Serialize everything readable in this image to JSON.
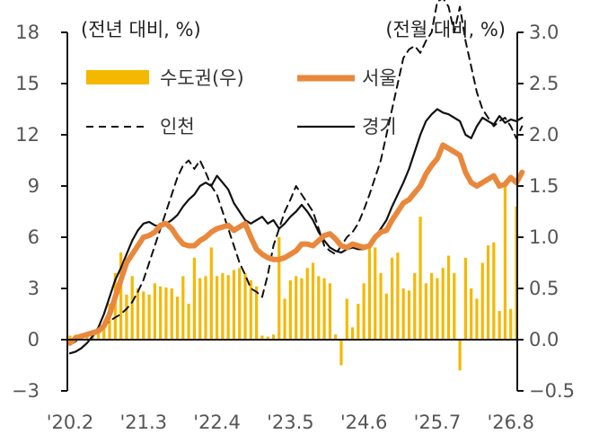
{
  "chart_data": {
    "type": "bar+line",
    "left_unit_label": "(전년 대비, %)",
    "right_unit_label": "(전월 대비, %)",
    "left_ticks": [
      "18",
      "15",
      "12",
      "9",
      "6",
      "3",
      "0",
      "−3"
    ],
    "right_ticks": [
      "3.0",
      "2.5",
      "2.0",
      "1.5",
      "1.0",
      "0.5",
      "0.0",
      "−0.5"
    ],
    "ylim_left": [
      -3,
      18
    ],
    "ylim_right": [
      -0.5,
      3.0
    ],
    "x_tick_labels": [
      "'20.2",
      "'21.3",
      "'22.4",
      "'23.5",
      "'24.6",
      "'25.7",
      "'26.8"
    ],
    "x_tick_index": [
      0,
      13,
      26,
      39,
      52,
      65,
      78
    ],
    "colors": {
      "bar": "#f5b800",
      "seoul": "#e9883c",
      "incheon": "#111111",
      "gyeonggi": "#111111"
    },
    "legend": [
      {
        "key": "bar",
        "label": "수도권(우)"
      },
      {
        "key": "seoul",
        "label": "서울"
      },
      {
        "key": "incheon",
        "label": "인천"
      },
      {
        "key": "gyeonggi",
        "label": "경기"
      }
    ],
    "series": [
      {
        "name": "수도권(우)",
        "axis": "right",
        "kind": "bar",
        "values": [
          0.04,
          0.05,
          0.06,
          0.07,
          0.05,
          0.06,
          0.12,
          0.35,
          0.65,
          0.85,
          0.44,
          0.62,
          0.5,
          0.47,
          0.44,
          0.55,
          0.52,
          0.51,
          0.5,
          0.42,
          0.62,
          0.35,
          0.8,
          0.6,
          0.62,
          0.9,
          0.62,
          0.65,
          0.63,
          0.68,
          0.7,
          0.65,
          0.58,
          0.52,
          0.04,
          0.03,
          0.05,
          1.0,
          0.4,
          0.58,
          0.62,
          0.6,
          0.7,
          0.75,
          0.62,
          0.6,
          0.55,
          0.05,
          -0.25,
          0.4,
          0.12,
          0.35,
          0.55,
          0.95,
          0.9,
          0.65,
          0.45,
          0.8,
          0.85,
          0.5,
          0.48,
          0.65,
          1.2,
          0.55,
          0.65,
          0.6,
          0.7,
          0.82,
          0.65,
          -0.3,
          0.8,
          0.5,
          0.4,
          0.75,
          0.92,
          0.95,
          0.28,
          1.55,
          0.3,
          1.3
        ]
      },
      {
        "name": "서울",
        "axis": "left",
        "kind": "line",
        "values": [
          -0.2,
          0.1,
          0.2,
          0.3,
          0.4,
          0.5,
          0.8,
          1.5,
          2.5,
          3.5,
          4.5,
          5.0,
          5.5,
          6.0,
          6.1,
          6.3,
          6.7,
          6.8,
          6.5,
          6.0,
          5.6,
          5.5,
          5.5,
          5.8,
          6.0,
          6.3,
          6.5,
          6.6,
          6.7,
          6.4,
          6.6,
          6.8,
          6.0,
          5.3,
          5.0,
          4.8,
          4.7,
          4.7,
          4.8,
          5.0,
          5.2,
          5.6,
          5.6,
          5.5,
          5.8,
          6.1,
          6.2,
          5.9,
          5.5,
          5.4,
          5.6,
          5.5,
          5.4,
          5.5,
          6.0,
          6.3,
          6.4,
          7.0,
          7.5,
          8.0,
          8.2,
          8.6,
          9.0,
          9.7,
          10.2,
          10.6,
          11.4,
          11.2,
          11.0,
          10.8,
          9.8,
          9.2,
          9.0,
          9.2,
          9.4,
          9.6,
          9.0,
          9.1,
          9.5,
          9.2,
          9.8
        ]
      },
      {
        "name": "인천",
        "axis": "left",
        "kind": "line",
        "values": [
          -0.3,
          -0.1,
          0.1,
          0.3,
          0.5,
          0.6,
          0.8,
          1.1,
          1.3,
          1.5,
          1.8,
          2.2,
          2.8,
          3.5,
          4.5,
          5.5,
          6.5,
          7.5,
          8.5,
          9.5,
          10.2,
          10.5,
          10.0,
          10.5,
          9.8,
          9.0,
          8.5,
          7.5,
          6.5,
          5.5,
          4.5,
          3.8,
          3.0,
          2.8,
          2.5,
          3.8,
          5.5,
          6.5,
          7.5,
          8.2,
          9.0,
          8.5,
          8.0,
          7.5,
          6.5,
          5.5,
          5.2,
          5.0,
          5.5,
          6.0,
          6.3,
          6.8,
          7.6,
          8.5,
          9.5,
          10.5,
          12.0,
          13.5,
          15.0,
          16.5,
          17.0,
          17.2,
          16.8,
          17.5,
          18.0,
          19.8,
          20.0,
          19.5,
          18.0,
          19.5,
          17.5,
          16.0,
          14.5,
          13.5,
          13.0,
          12.5,
          12.8,
          13.0,
          12.5,
          11.8,
          12.5
        ]
      },
      {
        "name": "경기",
        "axis": "left",
        "kind": "line",
        "values": [
          -0.8,
          -0.7,
          -0.5,
          -0.2,
          0.2,
          0.7,
          1.5,
          2.5,
          3.5,
          4.2,
          5.0,
          5.8,
          6.4,
          6.8,
          6.9,
          6.7,
          6.6,
          6.8,
          7.0,
          7.3,
          7.8,
          8.2,
          8.5,
          9.0,
          9.2,
          9.0,
          9.6,
          9.2,
          8.8,
          8.0,
          7.5,
          7.0,
          6.8,
          7.0,
          7.2,
          6.8,
          7.0,
          6.5,
          6.8,
          7.2,
          7.5,
          7.9,
          7.5,
          7.0,
          6.3,
          5.8,
          5.4,
          5.2,
          5.1,
          5.3,
          5.4,
          5.3,
          5.3,
          5.5,
          6.0,
          6.5,
          7.0,
          7.8,
          8.5,
          9.2,
          10.0,
          11.0,
          12.0,
          12.8,
          13.2,
          13.5,
          13.3,
          13.2,
          13.0,
          12.8,
          12.0,
          11.8,
          12.5,
          13.0,
          12.8,
          12.6,
          13.1,
          12.7,
          12.9,
          12.8,
          13.0
        ]
      }
    ]
  }
}
